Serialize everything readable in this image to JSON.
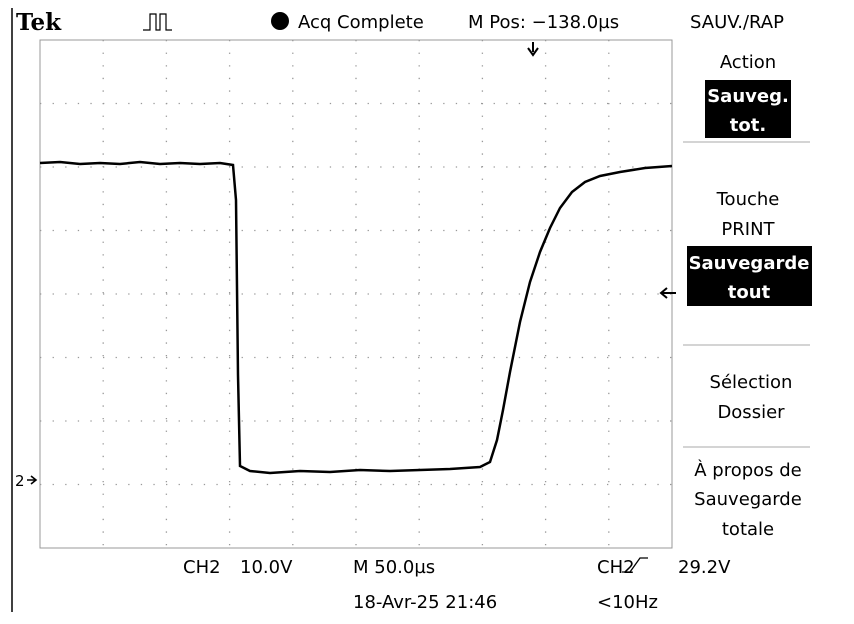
{
  "header": {
    "brand": "Tek",
    "status": "Acq Complete",
    "position": "M Pos: −138.0µs",
    "menu_title": "SAUV./RAP"
  },
  "menu": [
    {
      "lines": [
        "Action"
      ]
    },
    {
      "lines": [
        "Sauveg.",
        "tot."
      ]
    },
    {
      "lines": [
        "Touche",
        "PRINT"
      ]
    },
    {
      "lines": [
        "Sauvegarde",
        "tout"
      ]
    },
    {
      "lines": [
        "Sélection",
        "Dossier"
      ]
    },
    {
      "lines": [
        "À propos de",
        "Sauvegarde",
        "totale"
      ]
    }
  ],
  "channel_marker": "2",
  "footer": {
    "channel": "CH2",
    "volts_div": "10.0V",
    "time_div": "M 50.0µs",
    "trigger_channel": "CH2",
    "trigger_level": "29.2V",
    "datetime": "18-Avr-25 21:46",
    "frequency": "<10Hz"
  }
}
